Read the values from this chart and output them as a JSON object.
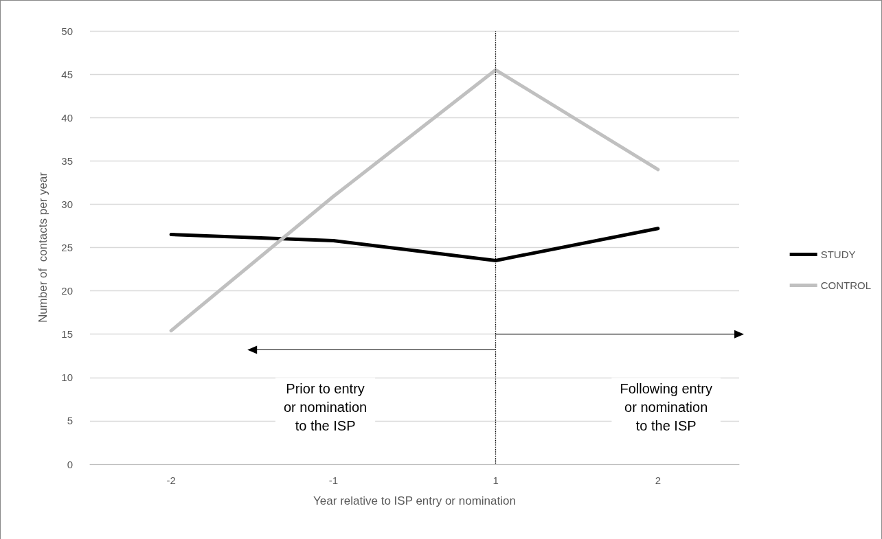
{
  "chart_data": {
    "type": "line",
    "xlabel": "Year relative to ISP entry or nomination",
    "ylabel": "Number of  contacts per year",
    "categories": [
      "-2",
      "-1",
      "1",
      "2"
    ],
    "series": [
      {
        "name": "STUDY",
        "color": "#000000",
        "values": [
          26.5,
          25.8,
          23.5,
          27.2
        ]
      },
      {
        "name": "CONTROL",
        "color": "#c0c0c0",
        "values": [
          15.4,
          30.9,
          45.5,
          34.0
        ]
      }
    ],
    "ylim": [
      0,
      50
    ],
    "yticks": [
      0,
      5,
      10,
      15,
      20,
      25,
      30,
      35,
      40,
      45,
      50
    ],
    "grid": "y",
    "legend": "right",
    "marker": "none",
    "line_style": "solid",
    "ref_lines": [
      {
        "axis": "x",
        "value": "1",
        "label": null,
        "color": "#000000",
        "line_style": "dotted"
      }
    ],
    "annotations": [
      "Prior to entry\nor nomination\nto the ISP",
      "Following entry\nor nomination\nto the ISP"
    ]
  }
}
